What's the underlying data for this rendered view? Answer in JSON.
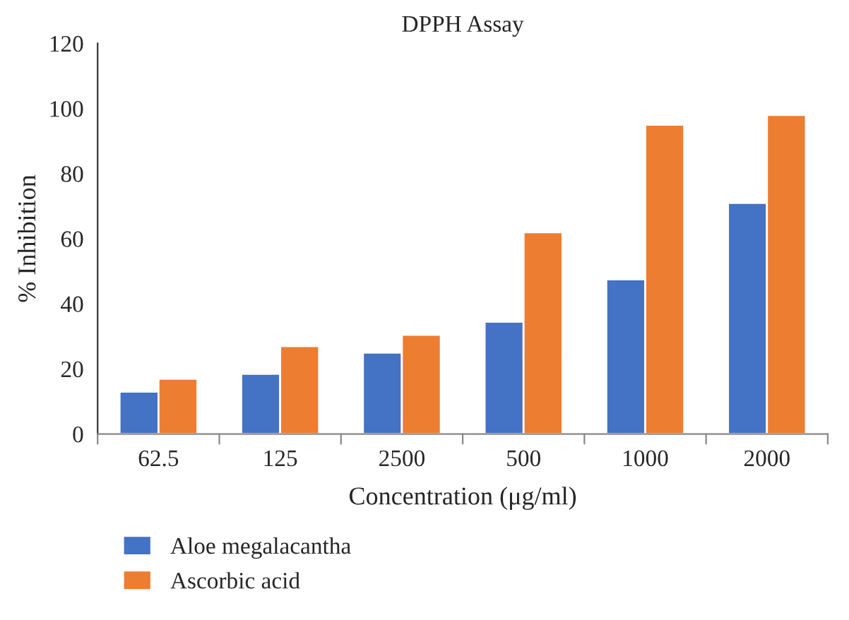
{
  "chart_data": {
    "type": "bar",
    "title": "DPPH Assay",
    "xlabel": "Concentration (μg/ml)",
    "ylabel": "% Inhibition",
    "categories": [
      "62.5",
      "125",
      "2500",
      "500",
      "1000",
      "2000"
    ],
    "series": [
      {
        "name": "Aloe megalacantha",
        "color": "#4472c4",
        "values": [
          13,
          18.5,
          25,
          34.5,
          47.5,
          71
        ]
      },
      {
        "name": "Ascorbic acid",
        "color": "#ed7d31",
        "values": [
          17,
          27,
          30.5,
          62,
          95,
          98
        ]
      }
    ],
    "ylim": [
      0,
      120
    ],
    "yticks": [
      0,
      20,
      40,
      60,
      80,
      100,
      120
    ],
    "grid": false,
    "legend": "bottom left"
  }
}
